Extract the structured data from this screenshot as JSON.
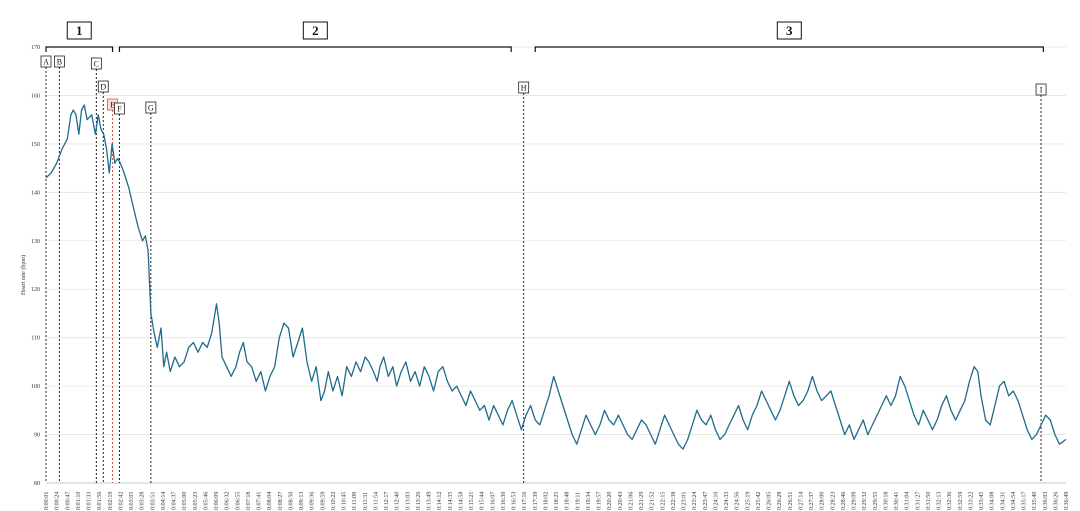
{
  "chart_data": {
    "type": "line",
    "ylabel": "Heart rate (bpm)",
    "ylim": [
      80,
      170
    ],
    "yticks": [
      80,
      90,
      100,
      110,
      120,
      130,
      140,
      150,
      160,
      170
    ],
    "grid": "horizontal",
    "x_start_seconds": 1,
    "x_end_seconds": 2209,
    "series": [
      {
        "color": "#1f6b8c",
        "points": [
          [
            1,
            143
          ],
          [
            12,
            144
          ],
          [
            24,
            146
          ],
          [
            36,
            149
          ],
          [
            47,
            151
          ],
          [
            55,
            156
          ],
          [
            60,
            157
          ],
          [
            66,
            156
          ],
          [
            72,
            152
          ],
          [
            78,
            157
          ],
          [
            84,
            158
          ],
          [
            90,
            155
          ],
          [
            100,
            156
          ],
          [
            108,
            152
          ],
          [
            114,
            156
          ],
          [
            120,
            153
          ],
          [
            126,
            152
          ],
          [
            132,
            149
          ],
          [
            138,
            144
          ],
          [
            144,
            150
          ],
          [
            150,
            146
          ],
          [
            156,
            147
          ],
          [
            162,
            146
          ],
          [
            170,
            144
          ],
          [
            180,
            141
          ],
          [
            190,
            137
          ],
          [
            200,
            133
          ],
          [
            210,
            130
          ],
          [
            216,
            131
          ],
          [
            222,
            128
          ],
          [
            228,
            115
          ],
          [
            235,
            111
          ],
          [
            242,
            108
          ],
          [
            250,
            112
          ],
          [
            256,
            104
          ],
          [
            262,
            107
          ],
          [
            270,
            103
          ],
          [
            280,
            106
          ],
          [
            290,
            104
          ],
          [
            300,
            105
          ],
          [
            310,
            108
          ],
          [
            320,
            109
          ],
          [
            330,
            107
          ],
          [
            340,
            109
          ],
          [
            350,
            108
          ],
          [
            360,
            111
          ],
          [
            370,
            117
          ],
          [
            376,
            113
          ],
          [
            382,
            106
          ],
          [
            392,
            104
          ],
          [
            402,
            102
          ],
          [
            412,
            104
          ],
          [
            420,
            107
          ],
          [
            428,
            109
          ],
          [
            436,
            105
          ],
          [
            446,
            104
          ],
          [
            456,
            101
          ],
          [
            466,
            103
          ],
          [
            476,
            99
          ],
          [
            486,
            102
          ],
          [
            496,
            104
          ],
          [
            506,
            110
          ],
          [
            516,
            113
          ],
          [
            526,
            112
          ],
          [
            536,
            106
          ],
          [
            546,
            109
          ],
          [
            556,
            112
          ],
          [
            566,
            105
          ],
          [
            576,
            101
          ],
          [
            586,
            104
          ],
          [
            596,
            97
          ],
          [
            604,
            99
          ],
          [
            612,
            103
          ],
          [
            622,
            99
          ],
          [
            632,
            102
          ],
          [
            642,
            98
          ],
          [
            652,
            104
          ],
          [
            662,
            102
          ],
          [
            672,
            105
          ],
          [
            682,
            103
          ],
          [
            692,
            106
          ],
          [
            700,
            105
          ],
          [
            710,
            103
          ],
          [
            718,
            101
          ],
          [
            724,
            104
          ],
          [
            732,
            106
          ],
          [
            742,
            102
          ],
          [
            752,
            104
          ],
          [
            760,
            100
          ],
          [
            770,
            103
          ],
          [
            780,
            105
          ],
          [
            790,
            101
          ],
          [
            800,
            103
          ],
          [
            810,
            100
          ],
          [
            820,
            104
          ],
          [
            830,
            102
          ],
          [
            840,
            99
          ],
          [
            850,
            103
          ],
          [
            860,
            104
          ],
          [
            870,
            101
          ],
          [
            880,
            99
          ],
          [
            890,
            100
          ],
          [
            900,
            98
          ],
          [
            910,
            96
          ],
          [
            920,
            99
          ],
          [
            930,
            97
          ],
          [
            940,
            95
          ],
          [
            950,
            96
          ],
          [
            960,
            93
          ],
          [
            970,
            96
          ],
          [
            980,
            94
          ],
          [
            990,
            92
          ],
          [
            1000,
            95
          ],
          [
            1010,
            97
          ],
          [
            1020,
            94
          ],
          [
            1030,
            91
          ],
          [
            1040,
            94
          ],
          [
            1050,
            96
          ],
          [
            1060,
            93
          ],
          [
            1070,
            92
          ],
          [
            1080,
            95
          ],
          [
            1090,
            98
          ],
          [
            1100,
            102
          ],
          [
            1110,
            99
          ],
          [
            1120,
            96
          ],
          [
            1130,
            93
          ],
          [
            1140,
            90
          ],
          [
            1150,
            88
          ],
          [
            1160,
            91
          ],
          [
            1170,
            94
          ],
          [
            1180,
            92
          ],
          [
            1190,
            90
          ],
          [
            1200,
            92
          ],
          [
            1210,
            95
          ],
          [
            1220,
            93
          ],
          [
            1230,
            92
          ],
          [
            1240,
            94
          ],
          [
            1250,
            92
          ],
          [
            1260,
            90
          ],
          [
            1270,
            89
          ],
          [
            1280,
            91
          ],
          [
            1290,
            93
          ],
          [
            1300,
            92
          ],
          [
            1310,
            90
          ],
          [
            1320,
            88
          ],
          [
            1330,
            91
          ],
          [
            1340,
            94
          ],
          [
            1350,
            92
          ],
          [
            1360,
            90
          ],
          [
            1370,
            88
          ],
          [
            1380,
            87
          ],
          [
            1390,
            89
          ],
          [
            1400,
            92
          ],
          [
            1410,
            95
          ],
          [
            1420,
            93
          ],
          [
            1430,
            92
          ],
          [
            1440,
            94
          ],
          [
            1450,
            91
          ],
          [
            1460,
            89
          ],
          [
            1470,
            90
          ],
          [
            1480,
            92
          ],
          [
            1490,
            94
          ],
          [
            1500,
            96
          ],
          [
            1510,
            93
          ],
          [
            1520,
            91
          ],
          [
            1530,
            94
          ],
          [
            1540,
            96
          ],
          [
            1550,
            99
          ],
          [
            1560,
            97
          ],
          [
            1570,
            95
          ],
          [
            1580,
            93
          ],
          [
            1590,
            95
          ],
          [
            1600,
            98
          ],
          [
            1610,
            101
          ],
          [
            1620,
            98
          ],
          [
            1630,
            96
          ],
          [
            1640,
            97
          ],
          [
            1650,
            99
          ],
          [
            1660,
            102
          ],
          [
            1670,
            99
          ],
          [
            1680,
            97
          ],
          [
            1690,
            98
          ],
          [
            1700,
            99
          ],
          [
            1710,
            96
          ],
          [
            1720,
            93
          ],
          [
            1730,
            90
          ],
          [
            1740,
            92
          ],
          [
            1750,
            89
          ],
          [
            1760,
            91
          ],
          [
            1770,
            93
          ],
          [
            1780,
            90
          ],
          [
            1790,
            92
          ],
          [
            1800,
            94
          ],
          [
            1810,
            96
          ],
          [
            1820,
            98
          ],
          [
            1830,
            96
          ],
          [
            1840,
            98
          ],
          [
            1850,
            102
          ],
          [
            1860,
            100
          ],
          [
            1870,
            97
          ],
          [
            1880,
            94
          ],
          [
            1890,
            92
          ],
          [
            1900,
            95
          ],
          [
            1910,
            93
          ],
          [
            1920,
            91
          ],
          [
            1930,
            93
          ],
          [
            1940,
            96
          ],
          [
            1950,
            98
          ],
          [
            1960,
            95
          ],
          [
            1970,
            93
          ],
          [
            1980,
            95
          ],
          [
            1990,
            97
          ],
          [
            2000,
            101
          ],
          [
            2010,
            104
          ],
          [
            2018,
            103
          ],
          [
            2025,
            98
          ],
          [
            2035,
            93
          ],
          [
            2045,
            92
          ],
          [
            2055,
            96
          ],
          [
            2065,
            100
          ],
          [
            2075,
            101
          ],
          [
            2085,
            98
          ],
          [
            2095,
            99
          ],
          [
            2105,
            97
          ],
          [
            2115,
            94
          ],
          [
            2125,
            91
          ],
          [
            2135,
            89
          ],
          [
            2145,
            90
          ],
          [
            2155,
            92
          ],
          [
            2165,
            94
          ],
          [
            2175,
            93
          ],
          [
            2185,
            90
          ],
          [
            2195,
            88
          ],
          [
            2209,
            89
          ]
        ]
      }
    ],
    "markers": [
      {
        "label": "A",
        "t": 1,
        "color": "#222222"
      },
      {
        "label": "B",
        "t": 30,
        "color": "#222222"
      },
      {
        "label": "C",
        "t": 110,
        "color": "#222222"
      },
      {
        "label": "D",
        "t": 125,
        "color": "#222222"
      },
      {
        "label": "E",
        "t": 145,
        "color": "#e05050"
      },
      {
        "label": "F",
        "t": 160,
        "color": "#222222"
      },
      {
        "label": "G",
        "t": 228,
        "color": "#222222"
      },
      {
        "label": "H",
        "t": 1035,
        "color": "#222222"
      },
      {
        "label": "I",
        "t": 2155,
        "color": "#222222"
      }
    ],
    "phases": [
      {
        "label": "1",
        "start": 1,
        "end": 145
      },
      {
        "label": "2",
        "start": 160,
        "end": 1008
      },
      {
        "label": "3",
        "start": 1060,
        "end": 2160
      }
    ]
  }
}
